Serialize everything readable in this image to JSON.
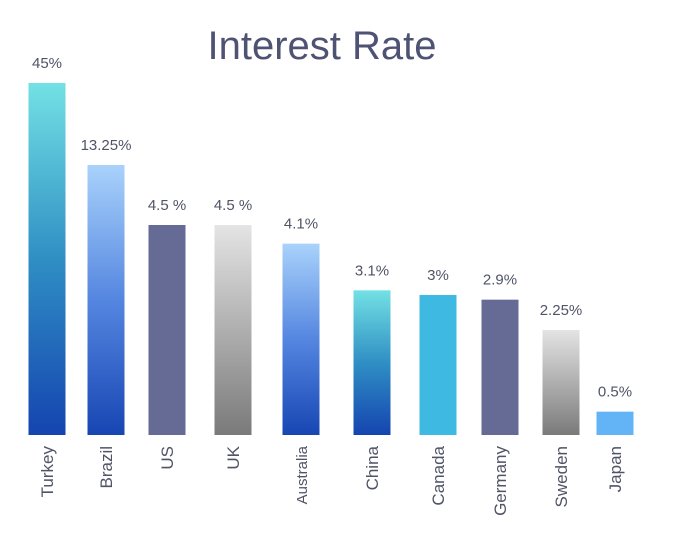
{
  "chart_data": {
    "type": "bar",
    "title": "Interest Rate",
    "xlabel": "",
    "ylabel": "",
    "grid": false,
    "legend": "none",
    "categories": [
      "Turkey",
      "Brazil",
      "US",
      "UK",
      "Australia",
      "China",
      "Canada",
      "Germany",
      "Sweden",
      "Japan"
    ],
    "data_labels": [
      "45%",
      "13.25%",
      "4.5 %",
      "4.5 %",
      "4.1%",
      "3.1%",
      "3%",
      "2.9%",
      "2.25%",
      "0.5%"
    ],
    "values": [
      45,
      13.25,
      4.5,
      4.5,
      4.1,
      3.1,
      3,
      2.9,
      2.25,
      0.5
    ],
    "colors": [
      "#2f9fc9",
      "#6aa6f0",
      "#646b94",
      "#b0b0b0",
      "#5f93ea",
      "#2f9fc9",
      "#3cb8e2",
      "#646b94",
      "#a8a8a8",
      "#62b4f6"
    ]
  }
}
